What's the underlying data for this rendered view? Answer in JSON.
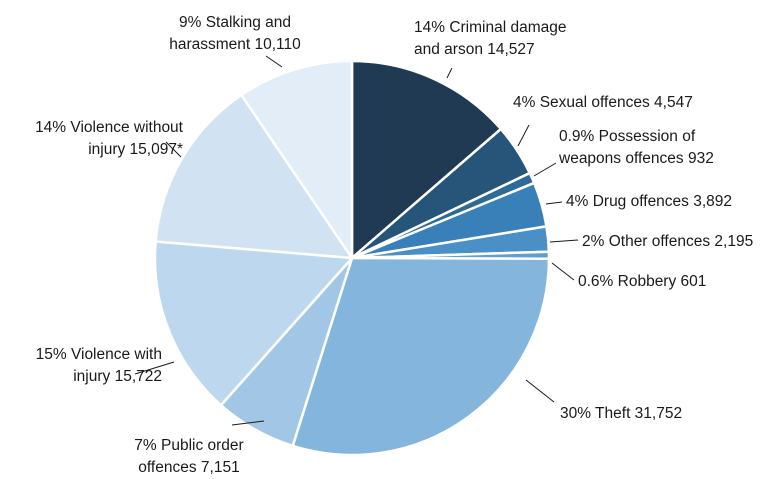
{
  "chart_data": {
    "type": "pie",
    "title": "",
    "start_angle_deg": 0,
    "direction": "clockwise",
    "slices": [
      {
        "category": "Criminal damage and arson",
        "percent_label": "14%",
        "value": 14527,
        "value_label": "14,527",
        "color": "#1f3a52",
        "label_lines": [
          "14% Criminal damage",
          "and arson 14,527"
        ]
      },
      {
        "category": "Sexual offences",
        "percent_label": "4%",
        "value": 4547,
        "value_label": "4,547",
        "color": "#265579",
        "label_lines": [
          "4% Sexual offences 4,547"
        ]
      },
      {
        "category": "Possession of weapons offences",
        "percent_label": "0.9%",
        "value": 932,
        "value_label": "932",
        "color": "#2d6a96",
        "label_lines": [
          "0.9% Possession of",
          "weapons offences 932"
        ]
      },
      {
        "category": "Drug offences",
        "percent_label": "4%",
        "value": 3892,
        "value_label": "3,892",
        "color": "#3a80b8",
        "label_lines": [
          "4% Drug offences 3,892"
        ]
      },
      {
        "category": "Other offences",
        "percent_label": "2%",
        "value": 2195,
        "value_label": "2,195",
        "color": "#4a8fc6",
        "label_lines": [
          "2% Other offences 2,195"
        ]
      },
      {
        "category": "Robbery",
        "percent_label": "0.6%",
        "value": 601,
        "value_label": "601",
        "color": "#5f9fd0",
        "label_lines": [
          "0.6% Robbery 601"
        ]
      },
      {
        "category": "Theft",
        "percent_label": "30%",
        "value": 31752,
        "value_label": "31,752",
        "color": "#84b5dc",
        "label_lines": [
          "30% Theft 31,752"
        ]
      },
      {
        "category": "Public order offences",
        "percent_label": "7%",
        "value": 7151,
        "value_label": "7,151",
        "color": "#a2c6e6",
        "label_lines": [
          "7% Public order",
          "offences 7,151"
        ]
      },
      {
        "category": "Violence with injury",
        "percent_label": "15%",
        "value": 15722,
        "value_label": "15,722",
        "color": "#bdd7ee",
        "label_lines": [
          "15% Violence with",
          "injury 15,722"
        ]
      },
      {
        "category": "Violence without injury",
        "percent_label": "14%",
        "value": 15097,
        "value_label": "15,097*",
        "color": "#d1e3f3",
        "label_lines": [
          "14% Violence without",
          "injury 15,097*"
        ]
      },
      {
        "category": "Stalking and harassment",
        "percent_label": "9%",
        "value": 10110,
        "value_label": "10,110",
        "color": "#e2edf8",
        "label_lines": [
          "9% Stalking and",
          "harassment 10,110"
        ]
      }
    ]
  }
}
